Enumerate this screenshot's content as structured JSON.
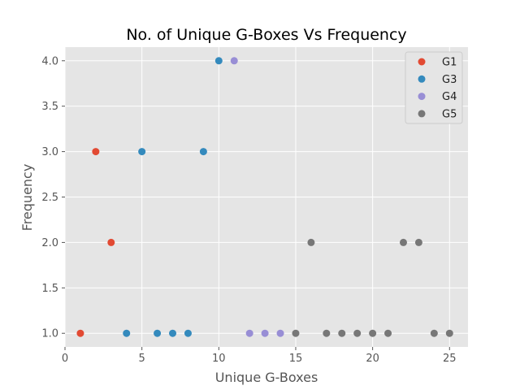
{
  "chart_data": {
    "type": "scatter",
    "title": "No. of Unique G-Boxes Vs Frequency",
    "xlabel": "Unique G-Boxes",
    "ylabel": "Frequency",
    "xlim": [
      0,
      26.2
    ],
    "ylim": [
      0.85,
      4.15
    ],
    "xticks": [
      0,
      5,
      10,
      15,
      20,
      25
    ],
    "yticks": [
      1.0,
      1.5,
      2.0,
      2.5,
      3.0,
      3.5,
      4.0
    ],
    "xtick_labels": [
      "0",
      "5",
      "10",
      "15",
      "20",
      "25"
    ],
    "ytick_labels": [
      "1.0",
      "1.5",
      "2.0",
      "2.5",
      "3.0",
      "3.5",
      "4.0"
    ],
    "grid": true,
    "legend_position": "top-right",
    "series": [
      {
        "name": "G1",
        "color": "#E24A33",
        "points": [
          [
            1,
            1.0
          ],
          [
            2,
            3.0
          ],
          [
            3,
            2.0
          ]
        ]
      },
      {
        "name": "G3",
        "color": "#348ABD",
        "points": [
          [
            4,
            1.0
          ],
          [
            5,
            3.0
          ],
          [
            6,
            1.0
          ],
          [
            7,
            1.0
          ],
          [
            8,
            1.0
          ],
          [
            9,
            3.0
          ],
          [
            10,
            4.0
          ]
        ]
      },
      {
        "name": "G4",
        "color": "#988ED5",
        "points": [
          [
            11,
            4.0
          ],
          [
            12,
            1.0
          ],
          [
            13,
            1.0
          ],
          [
            14,
            1.0
          ]
        ]
      },
      {
        "name": "G5",
        "color": "#777777",
        "points": [
          [
            15,
            1.0
          ],
          [
            16,
            2.0
          ],
          [
            17,
            1.0
          ],
          [
            18,
            1.0
          ],
          [
            19,
            1.0
          ],
          [
            20,
            1.0
          ],
          [
            21,
            1.0
          ],
          [
            22,
            2.0
          ],
          [
            23,
            2.0
          ],
          [
            24,
            1.0
          ],
          [
            25,
            1.0
          ]
        ]
      }
    ]
  }
}
